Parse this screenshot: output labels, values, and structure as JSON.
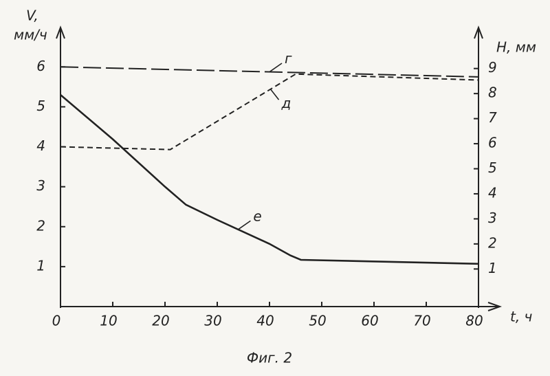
{
  "chart_data": {
    "type": "line",
    "y_label_top": "V,",
    "y_label_unit": "мм/ч",
    "y2_label": "H, мм",
    "x_label": "t, ч",
    "caption": "Фиг. 2",
    "xlim": [
      0,
      80
    ],
    "xticks": [
      0,
      10,
      20,
      30,
      40,
      50,
      60,
      70,
      80
    ],
    "ylim": [
      0,
      6.9
    ],
    "yticks": [
      1,
      2,
      3,
      4,
      5,
      6
    ],
    "y2lim": [
      -0.5,
      10.5
    ],
    "y2ticks": [
      1,
      2,
      3,
      4,
      5,
      6,
      7,
      8,
      9
    ],
    "series": [
      {
        "name": "г",
        "color": "#222222",
        "dash": "long",
        "x": [
          0,
          80
        ],
        "values": [
          6.0,
          5.75
        ]
      },
      {
        "name": "д",
        "color": "#222222",
        "dash": "short",
        "x": [
          0,
          21,
          45,
          80
        ],
        "values": [
          4.0,
          3.93,
          5.82,
          5.67
        ]
      },
      {
        "name": "е",
        "color": "#222222",
        "dash": "solid",
        "x": [
          0,
          10,
          20,
          24,
          30,
          40,
          44,
          46,
          80
        ],
        "values": [
          5.3,
          4.19,
          3.0,
          2.55,
          2.17,
          1.57,
          1.28,
          1.17,
          1.07
        ]
      }
    ]
  }
}
